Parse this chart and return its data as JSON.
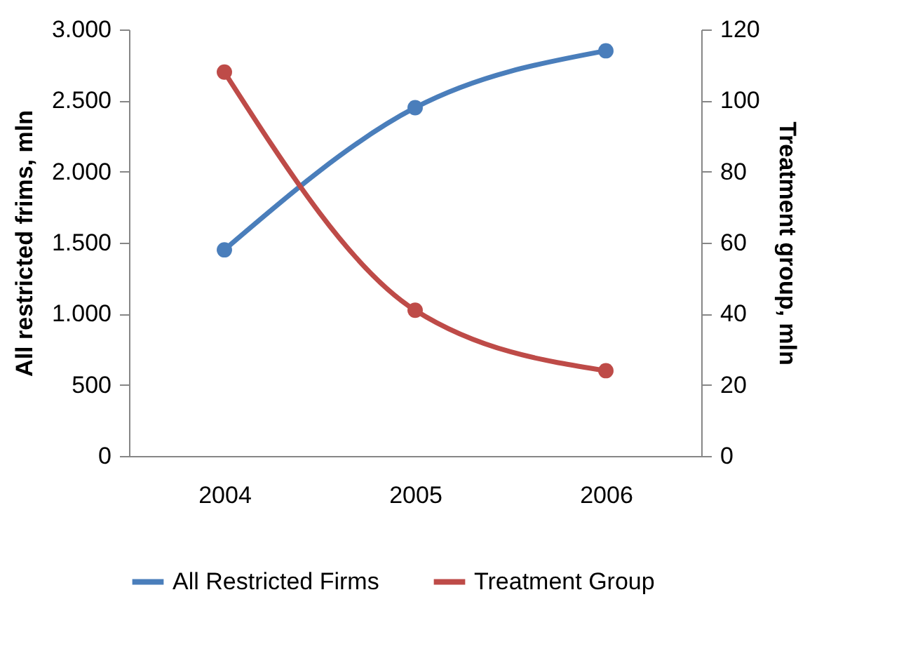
{
  "chart_data": {
    "type": "line",
    "categories": [
      "2004",
      "2005",
      "2006"
    ],
    "series": [
      {
        "name": "All Restricted Firms",
        "color": "#4a7ebb",
        "values": [
          1450,
          2450,
          2850
        ]
      },
      {
        "name": "Treatment Group",
        "color": "#be4b48",
        "values": [
          108,
          41,
          24
        ],
        "axis": "y2"
      }
    ],
    "ylabel": "All restricted frims, mln",
    "y2label": "Treatment group, mln",
    "ylim": [
      0,
      3000
    ],
    "yticks": [
      0,
      {
        "value": 500,
        "label": "500"
      },
      {
        "value": 1000,
        "label": "1.000"
      },
      {
        "value": 1500,
        "label": "1.500"
      },
      {
        "value": 2000,
        "label": "2.000"
      },
      {
        "value": 2500,
        "label": "2.500"
      },
      {
        "value": 3000,
        "label": "3.000"
      }
    ],
    "y2lim": [
      0,
      120
    ],
    "y2ticks": [
      0,
      20,
      40,
      60,
      80,
      100,
      120
    ],
    "grid": false,
    "legend": "bottom",
    "marker": "circle",
    "line_style": "solid"
  }
}
